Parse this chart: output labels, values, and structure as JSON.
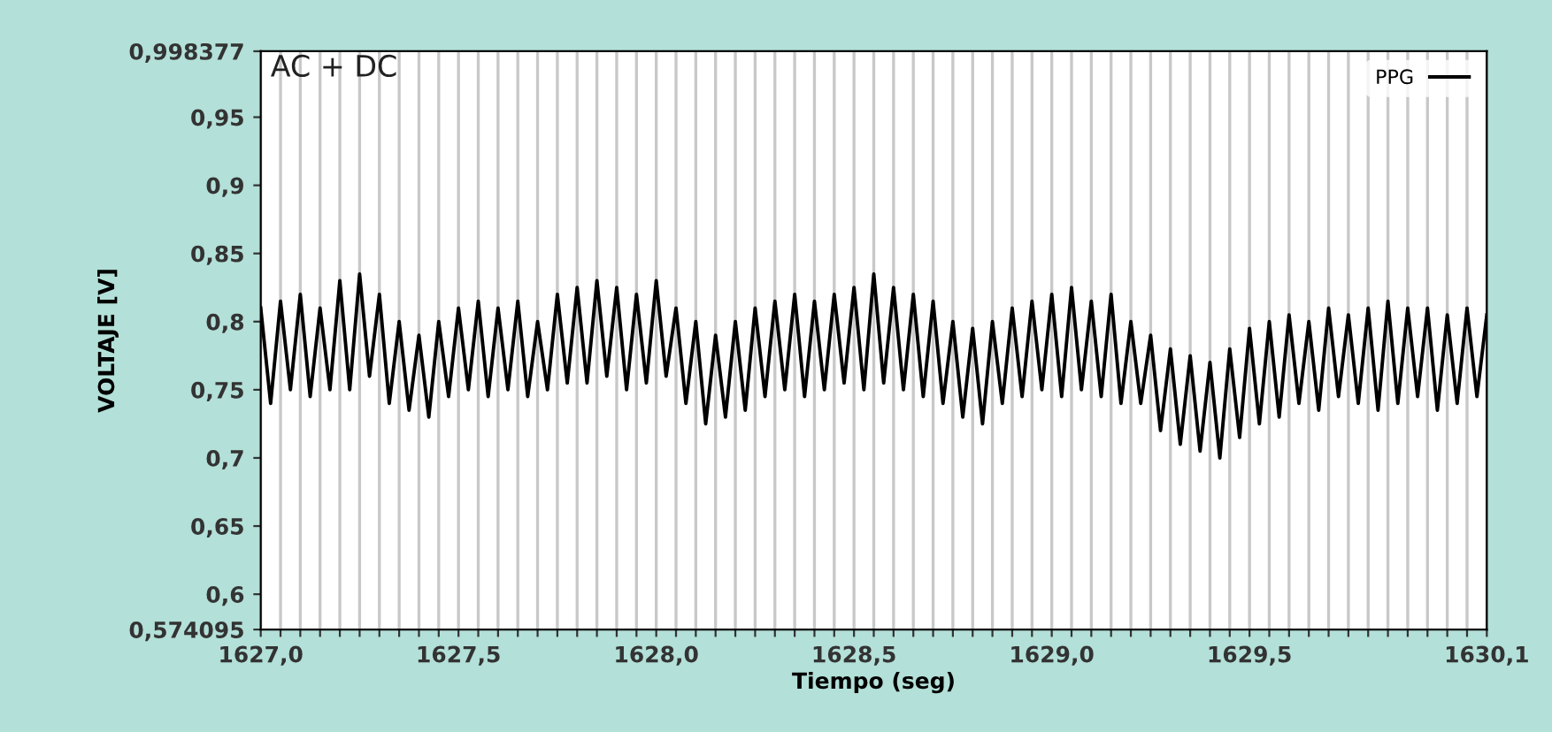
{
  "chart_data": {
    "type": "line",
    "xlabel": "Tiempo (seg)",
    "ylabel": "VOLTAJE [V]",
    "annotations": [
      "AC + DC"
    ],
    "legend": "top right",
    "grid": "x",
    "marker": "none",
    "line_style": "solid",
    "xlim": [
      1627.0,
      1630.1
    ],
    "ylim": [
      0.574095,
      0.998377
    ],
    "yticks": [
      {
        "value": 0.574095,
        "label": "0,574095"
      },
      {
        "value": 0.6,
        "label": "0,6"
      },
      {
        "value": 0.65,
        "label": "0,65"
      },
      {
        "value": 0.7,
        "label": "0,7"
      },
      {
        "value": 0.75,
        "label": "0,75"
      },
      {
        "value": 0.8,
        "label": "0,8"
      },
      {
        "value": 0.85,
        "label": "0,85"
      },
      {
        "value": 0.9,
        "label": "0,9"
      },
      {
        "value": 0.95,
        "label": "0,95"
      },
      {
        "value": 0.998377,
        "label": "0,998377"
      }
    ],
    "xticks": [
      {
        "value": 1627.0,
        "label": "1627,0"
      },
      {
        "value": 1627.05,
        "label": null
      },
      {
        "value": 1627.1,
        "label": null
      },
      {
        "value": 1627.15,
        "label": null
      },
      {
        "value": 1627.2,
        "label": null
      },
      {
        "value": 1627.25,
        "label": null
      },
      {
        "value": 1627.3,
        "label": null
      },
      {
        "value": 1627.35,
        "label": null
      },
      {
        "value": 1627.4,
        "label": null
      },
      {
        "value": 1627.45,
        "label": null
      },
      {
        "value": 1627.5,
        "label": "1627,5"
      },
      {
        "value": 1627.55,
        "label": null
      },
      {
        "value": 1627.6,
        "label": null
      },
      {
        "value": 1627.65,
        "label": null
      },
      {
        "value": 1627.7,
        "label": null
      },
      {
        "value": 1627.75,
        "label": null
      },
      {
        "value": 1627.8,
        "label": null
      },
      {
        "value": 1627.85,
        "label": null
      },
      {
        "value": 1627.9,
        "label": null
      },
      {
        "value": 1627.95,
        "label": null
      },
      {
        "value": 1628.0,
        "label": "1628,0"
      },
      {
        "value": 1628.05,
        "label": null
      },
      {
        "value": 1628.1,
        "label": null
      },
      {
        "value": 1628.15,
        "label": null
      },
      {
        "value": 1628.2,
        "label": null
      },
      {
        "value": 1628.25,
        "label": null
      },
      {
        "value": 1628.3,
        "label": null
      },
      {
        "value": 1628.35,
        "label": null
      },
      {
        "value": 1628.4,
        "label": null
      },
      {
        "value": 1628.45,
        "label": null
      },
      {
        "value": 1628.5,
        "label": "1628,5"
      },
      {
        "value": 1628.55,
        "label": null
      },
      {
        "value": 1628.6,
        "label": null
      },
      {
        "value": 1628.65,
        "label": null
      },
      {
        "value": 1628.7,
        "label": null
      },
      {
        "value": 1628.75,
        "label": null
      },
      {
        "value": 1628.8,
        "label": null
      },
      {
        "value": 1628.85,
        "label": null
      },
      {
        "value": 1628.9,
        "label": null
      },
      {
        "value": 1628.95,
        "label": null
      },
      {
        "value": 1629.0,
        "label": "1629,0"
      },
      {
        "value": 1629.05,
        "label": null
      },
      {
        "value": 1629.1,
        "label": null
      },
      {
        "value": 1629.15,
        "label": null
      },
      {
        "value": 1629.2,
        "label": null
      },
      {
        "value": 1629.25,
        "label": null
      },
      {
        "value": 1629.3,
        "label": null
      },
      {
        "value": 1629.35,
        "label": null
      },
      {
        "value": 1629.4,
        "label": null
      },
      {
        "value": 1629.45,
        "label": null
      },
      {
        "value": 1629.5,
        "label": "1629,5"
      },
      {
        "value": 1629.55,
        "label": null
      },
      {
        "value": 1629.6,
        "label": null
      },
      {
        "value": 1629.65,
        "label": null
      },
      {
        "value": 1629.7,
        "label": null
      },
      {
        "value": 1629.75,
        "label": null
      },
      {
        "value": 1629.8,
        "label": null
      },
      {
        "value": 1629.85,
        "label": null
      },
      {
        "value": 1629.9,
        "label": null
      },
      {
        "value": 1629.95,
        "label": null
      },
      {
        "value": 1630.0,
        "label": null
      },
      {
        "value": 1630.05,
        "label": null
      },
      {
        "value": 1630.1,
        "label": "1630,1"
      }
    ],
    "series": [
      {
        "name": "PPG",
        "color": "#000000",
        "x": [
          1627.0,
          1627.025,
          1627.05,
          1627.075,
          1627.1,
          1627.125,
          1627.15,
          1627.175,
          1627.2,
          1627.225,
          1627.25,
          1627.275,
          1627.3,
          1627.325,
          1627.35,
          1627.375,
          1627.4,
          1627.425,
          1627.45,
          1627.475,
          1627.5,
          1627.525,
          1627.55,
          1627.575,
          1627.6,
          1627.625,
          1627.65,
          1627.675,
          1627.7,
          1627.725,
          1627.75,
          1627.775,
          1627.8,
          1627.825,
          1627.85,
          1627.875,
          1627.9,
          1627.925,
          1627.95,
          1627.975,
          1628.0,
          1628.025,
          1628.05,
          1628.075,
          1628.1,
          1628.125,
          1628.15,
          1628.175,
          1628.2,
          1628.225,
          1628.25,
          1628.275,
          1628.3,
          1628.325,
          1628.35,
          1628.375,
          1628.4,
          1628.425,
          1628.45,
          1628.475,
          1628.5,
          1628.525,
          1628.55,
          1628.575,
          1628.6,
          1628.625,
          1628.65,
          1628.675,
          1628.7,
          1628.725,
          1628.75,
          1628.775,
          1628.8,
          1628.825,
          1628.85,
          1628.875,
          1628.9,
          1628.925,
          1628.95,
          1628.975,
          1629.0,
          1629.025,
          1629.05,
          1629.075,
          1629.1,
          1629.125,
          1629.15,
          1629.175,
          1629.2,
          1629.225,
          1629.25,
          1629.275,
          1629.3,
          1629.325,
          1629.35,
          1629.375,
          1629.4,
          1629.425,
          1629.45,
          1629.475,
          1629.5,
          1629.525,
          1629.55,
          1629.575,
          1629.6,
          1629.625,
          1629.65,
          1629.675,
          1629.7,
          1629.725,
          1629.75,
          1629.775,
          1629.8,
          1629.825,
          1629.85,
          1629.875,
          1629.9,
          1629.925,
          1629.95,
          1629.975,
          1630.0,
          1630.025,
          1630.05,
          1630.075,
          1630.1
        ],
        "values": [
          0.81,
          0.74,
          0.815,
          0.75,
          0.82,
          0.745,
          0.81,
          0.75,
          0.83,
          0.75,
          0.835,
          0.76,
          0.82,
          0.74,
          0.8,
          0.735,
          0.79,
          0.73,
          0.8,
          0.745,
          0.81,
          0.75,
          0.815,
          0.745,
          0.81,
          0.75,
          0.815,
          0.745,
          0.8,
          0.75,
          0.82,
          0.755,
          0.825,
          0.755,
          0.83,
          0.76,
          0.825,
          0.75,
          0.82,
          0.755,
          0.83,
          0.76,
          0.81,
          0.74,
          0.8,
          0.725,
          0.79,
          0.73,
          0.8,
          0.735,
          0.81,
          0.745,
          0.815,
          0.75,
          0.82,
          0.745,
          0.815,
          0.75,
          0.82,
          0.755,
          0.825,
          0.75,
          0.835,
          0.755,
          0.825,
          0.75,
          0.82,
          0.745,
          0.815,
          0.74,
          0.8,
          0.73,
          0.795,
          0.725,
          0.8,
          0.74,
          0.81,
          0.745,
          0.815,
          0.75,
          0.82,
          0.745,
          0.825,
          0.75,
          0.815,
          0.745,
          0.82,
          0.74,
          0.8,
          0.74,
          0.79,
          0.72,
          0.78,
          0.71,
          0.775,
          0.705,
          0.77,
          0.7,
          0.78,
          0.715,
          0.795,
          0.725,
          0.8,
          0.73,
          0.805,
          0.74,
          0.8,
          0.735,
          0.81,
          0.745,
          0.805,
          0.74,
          0.81,
          0.735,
          0.815,
          0.74,
          0.81,
          0.745,
          0.81,
          0.735,
          0.805,
          0.74,
          0.81,
          0.745,
          0.805
        ]
      }
    ]
  }
}
